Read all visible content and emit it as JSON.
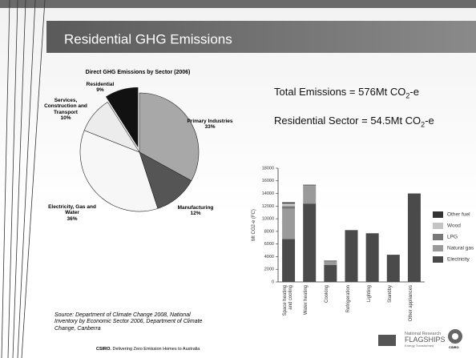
{
  "slide": {
    "title": "Residential GHG Emissions",
    "total": {
      "text": "Total Emissions = 576Mt CO",
      "sub": "2",
      "tail": "-e"
    },
    "residential": {
      "text": "Residential Sector = 54.5Mt CO",
      "sub": "2",
      "tail": "-e"
    },
    "source": "Source: Department of Climate Change 2008, National Inventory by Economic Sector 2006, Department of Climate Change, Canberra",
    "footer": {
      "brand": "CSIRO.",
      "text": "Delivering Zero Emission Homes to Australia"
    },
    "logo": {
      "line1": "National Research",
      "line2": "FLAGSHIPS",
      "line3": "Energy Transformed",
      "csiro": "CSIRO"
    }
  },
  "chart_data": [
    {
      "type": "pie",
      "title": "Direct GHG Emissions by Sector (2006)",
      "categories": [
        "Primary Industries",
        "Manufacturing",
        "Electricity, Gas and Water",
        "Services, Construction and Transport",
        "Residential"
      ],
      "values": [
        33,
        12,
        36,
        10,
        9
      ],
      "value_labels": [
        "33%",
        "12%",
        "36%",
        "10%",
        "9%"
      ],
      "colors": [
        "#a8a8a8",
        "#555555",
        "#f7f7f7",
        "#ececec",
        "#111111"
      ],
      "exploded": "Residential"
    },
    {
      "type": "stacked_bar",
      "y_label": "Mt CO2-e (FC)",
      "categories": [
        "Space heating and cooling",
        "Water heating",
        "Cooking",
        "Refrigeration",
        "Lighting",
        "Standby",
        "Other appliances"
      ],
      "series": [
        {
          "name": "Electricity",
          "color": "#4a4a4a",
          "values": [
            6800,
            12400,
            2700,
            8200,
            7700,
            4300,
            14000
          ]
        },
        {
          "name": "Natural gas",
          "color": "#9a9a9a",
          "values": [
            4800,
            2800,
            500,
            0,
            0,
            0,
            0
          ]
        },
        {
          "name": "LPG",
          "color": "#777777",
          "values": [
            400,
            200,
            200,
            0,
            0,
            0,
            0
          ]
        },
        {
          "name": "Wood",
          "color": "#c4c4c4",
          "values": [
            400,
            0,
            0,
            0,
            0,
            0,
            0
          ]
        },
        {
          "name": "Other fuel",
          "color": "#333333",
          "values": [
            200,
            0,
            0,
            0,
            0,
            0,
            0
          ]
        }
      ],
      "ylim": [
        0,
        18000
      ],
      "yticks": [
        0,
        2000,
        4000,
        6000,
        8000,
        10000,
        12000,
        14000,
        16000,
        18000
      ]
    }
  ]
}
